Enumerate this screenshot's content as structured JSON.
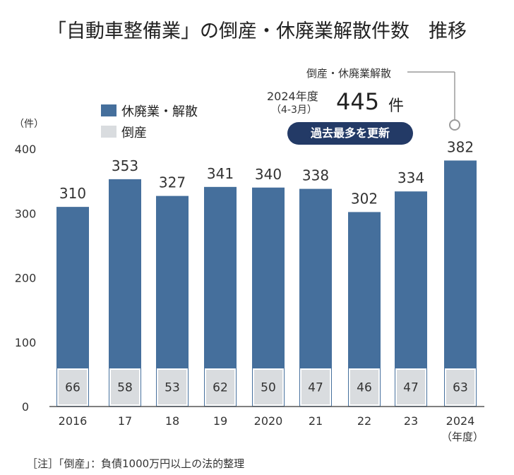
{
  "title": "「自動車整備業」の倒産・休廃業解散件数　推移",
  "legend": {
    "series1": "休廃業・解散",
    "series2": "倒産"
  },
  "y_unit": "（件）",
  "x_unit": "（年度）",
  "record": {
    "label": "倒産・休廃業解散",
    "period_line1": "2024年度",
    "period_line2": "（4-3月）",
    "value": "445",
    "unit": "件",
    "badge": "過去最多を更新"
  },
  "footnote": "［注］「倒産」：負債1000万円以上の法的整理",
  "colors": {
    "closure": "#456f9c",
    "bankruptcy": "#d9dcdf",
    "badge": "#233a66"
  },
  "chart_data": {
    "type": "bar",
    "categories": [
      "2016",
      "17",
      "18",
      "19",
      "2020",
      "21",
      "22",
      "23",
      "2024"
    ],
    "series": [
      {
        "name": "休廃業・解散",
        "values": [
          310,
          353,
          327,
          341,
          340,
          338,
          302,
          334,
          382
        ]
      },
      {
        "name": "倒産",
        "values": [
          66,
          58,
          53,
          62,
          50,
          47,
          46,
          47,
          63
        ]
      }
    ],
    "yticks": [
      0,
      100,
      200,
      300,
      400
    ],
    "ylim": [
      0,
      400
    ],
    "title": "「自動車整備業」の倒産・休廃業解散件数　推移",
    "xlabel": "（年度）",
    "ylabel": "（件）"
  }
}
